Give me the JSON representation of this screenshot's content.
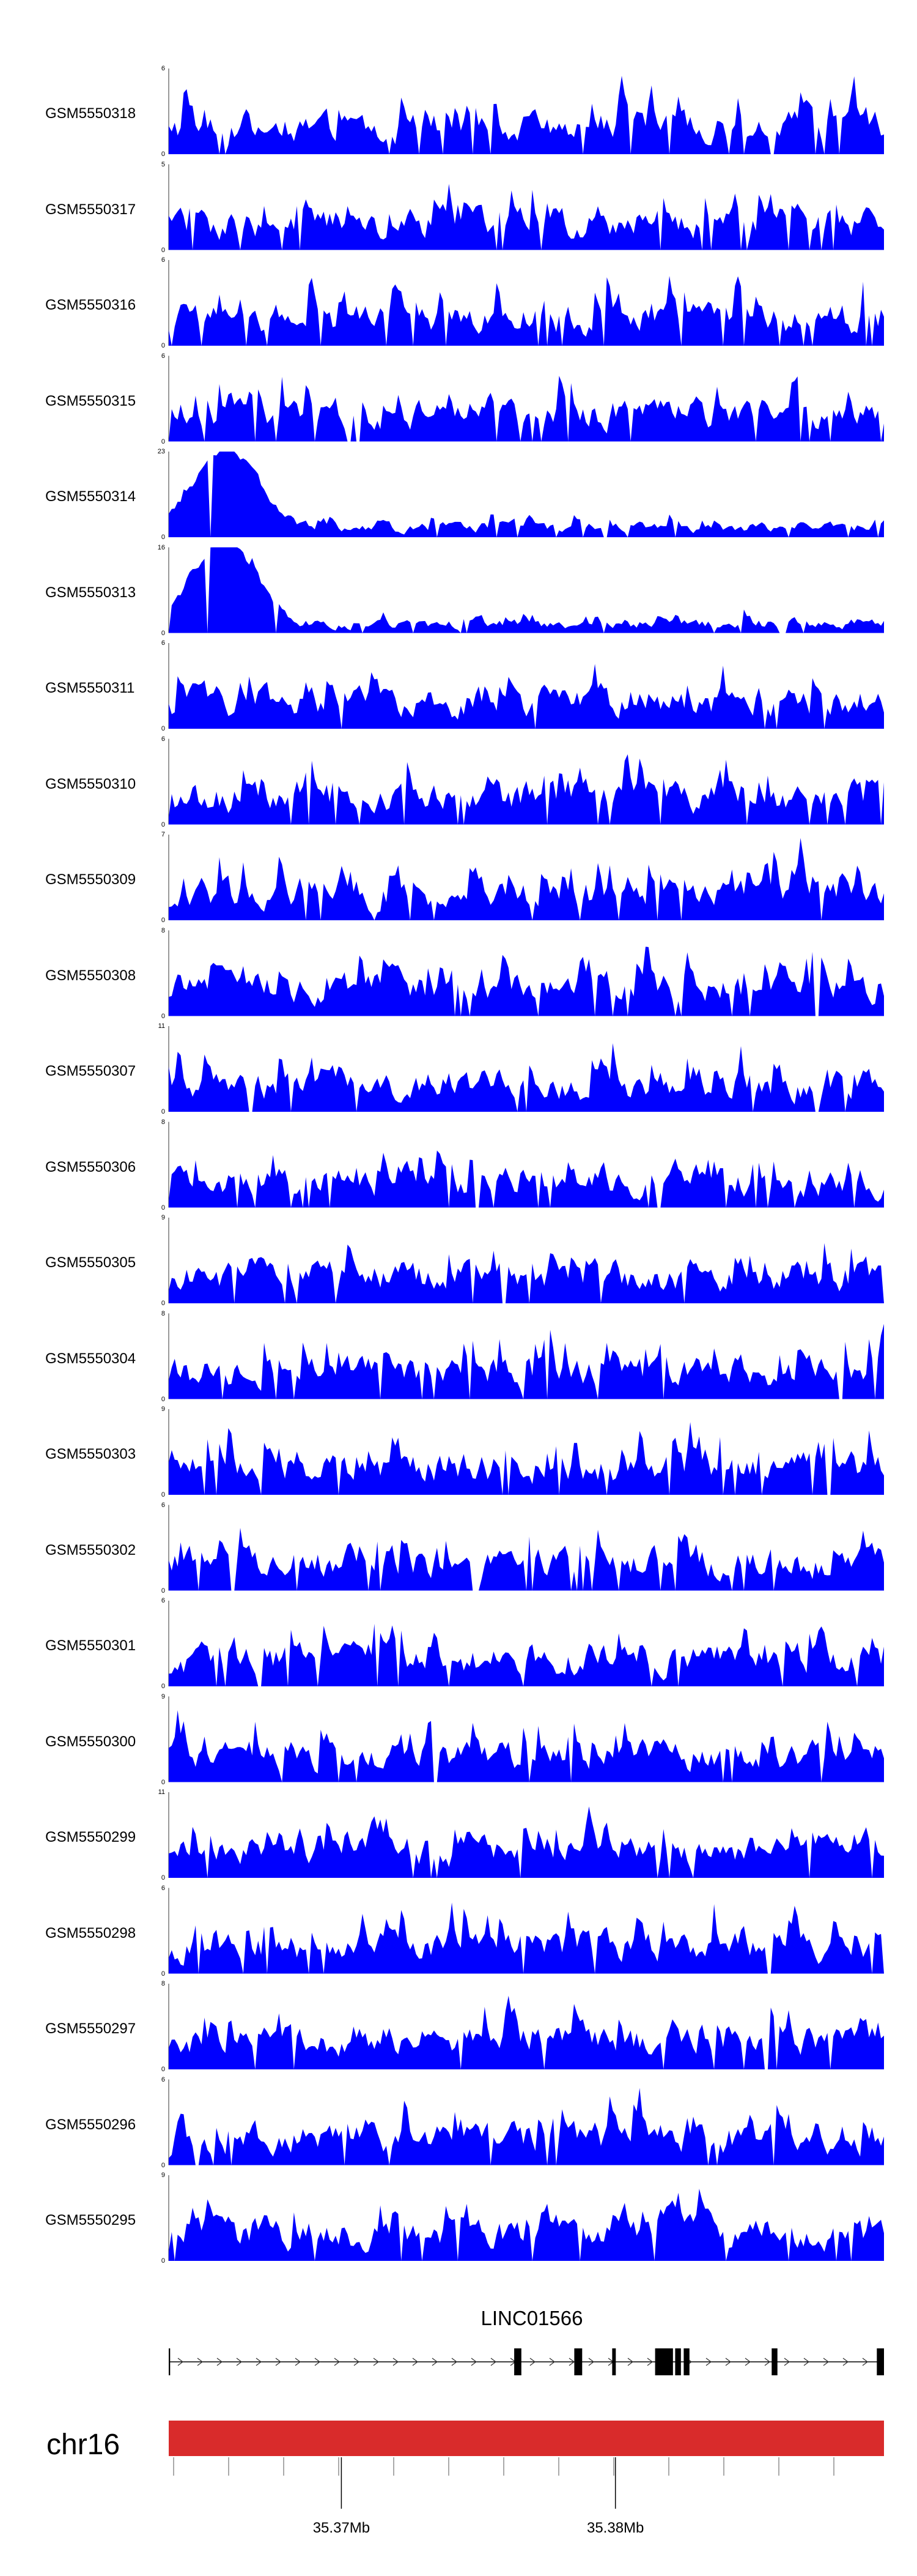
{
  "chart_data": {
    "type": "area",
    "ylim": [
      0,
      6
    ],
    "color": "#0000ff",
    "tracks": [
      {
        "sample": "GSM5550318",
        "ymax": 6
      },
      {
        "sample": "GSM5550317",
        "ymax": 5
      },
      {
        "sample": "GSM5550316",
        "ymax": 6
      },
      {
        "sample": "GSM5550315",
        "ymax": 6
      },
      {
        "sample": "GSM5550314",
        "ymax": 23
      },
      {
        "sample": "GSM5550313",
        "ymax": 16
      },
      {
        "sample": "GSM5550311",
        "ymax": 6
      },
      {
        "sample": "GSM5550310",
        "ymax": 6
      },
      {
        "sample": "GSM5550309",
        "ymax": 7
      },
      {
        "sample": "GSM5550308",
        "ymax": 8
      },
      {
        "sample": "GSM5550307",
        "ymax": 11
      },
      {
        "sample": "GSM5550306",
        "ymax": 8
      },
      {
        "sample": "GSM5550305",
        "ymax": 9
      },
      {
        "sample": "GSM5550304",
        "ymax": 8
      },
      {
        "sample": "GSM5550303",
        "ymax": 9
      },
      {
        "sample": "GSM5550302",
        "ymax": 6
      },
      {
        "sample": "GSM5550301",
        "ymax": 6
      },
      {
        "sample": "GSM5550300",
        "ymax": 9
      },
      {
        "sample": "GSM5550299",
        "ymax": 11
      },
      {
        "sample": "GSM5550298",
        "ymax": 6
      },
      {
        "sample": "GSM5550297",
        "ymax": 8
      },
      {
        "sample": "GSM5550296",
        "ymax": 6
      },
      {
        "sample": "GSM5550295",
        "ymax": 9
      }
    ],
    "gene": {
      "name": "LINC01566",
      "strand": "+",
      "color": "#000000"
    },
    "chromosome": {
      "name": "chr16",
      "color": "#d92b2b",
      "x_ticks": [
        {
          "label": "35.37Mb",
          "value": 35.37
        },
        {
          "label": "35.38Mb",
          "value": 35.38
        }
      ]
    }
  }
}
